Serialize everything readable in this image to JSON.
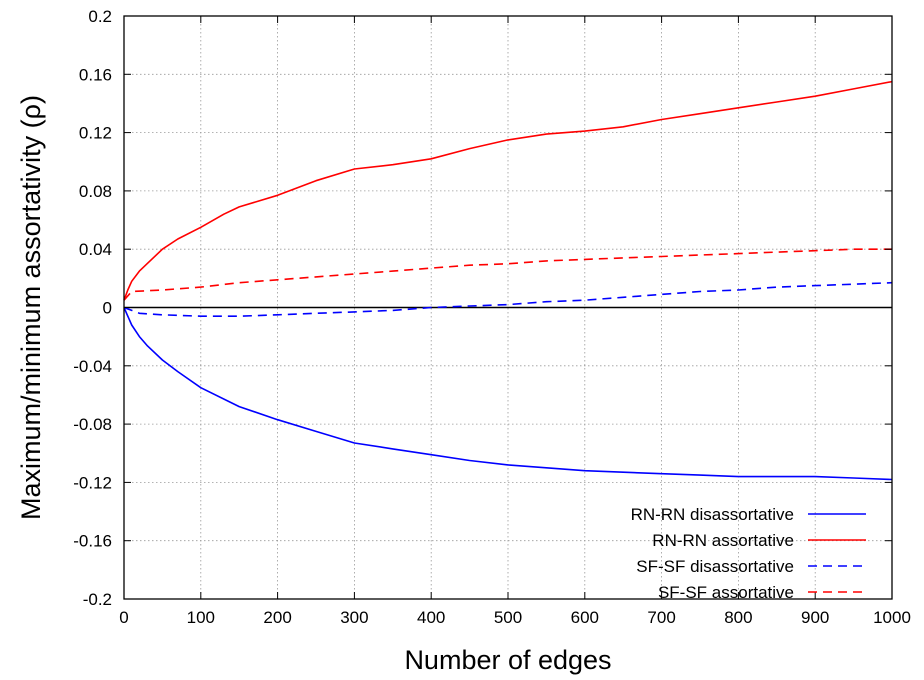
{
  "chart_data": {
    "type": "line",
    "title": "",
    "xlabel": "Number of edges",
    "ylabel": "Maximum/minimum assortativity (ρ)",
    "xlim": [
      0,
      1000
    ],
    "ylim": [
      -0.2,
      0.2
    ],
    "xticks": [
      "0",
      "100",
      "200",
      "300",
      "400",
      "500",
      "600",
      "700",
      "800",
      "900",
      "1000"
    ],
    "yticks": [
      "0.2",
      "0.16",
      "0.12",
      "0.08",
      "0.04",
      "0",
      "-0.04",
      "-0.08",
      "-0.12",
      "-0.16",
      "-0.2"
    ],
    "grid": true,
    "legend_position": "bottom-right",
    "series": [
      {
        "name": "RN-RN disassortative",
        "color": "#0000ff",
        "dash": "solid",
        "x": [
          0,
          10,
          20,
          30,
          50,
          70,
          100,
          150,
          200,
          250,
          300,
          350,
          400,
          450,
          500,
          550,
          600,
          650,
          700,
          750,
          800,
          850,
          900,
          950,
          1000
        ],
        "y": [
          0,
          -0.012,
          -0.02,
          -0.026,
          -0.036,
          -0.044,
          -0.055,
          -0.068,
          -0.077,
          -0.085,
          -0.093,
          -0.097,
          -0.101,
          -0.105,
          -0.108,
          -0.11,
          -0.112,
          -0.113,
          -0.114,
          -0.115,
          -0.116,
          -0.116,
          -0.116,
          -0.117,
          -0.118
        ]
      },
      {
        "name": "RN-RN assortative",
        "color": "#ff0000",
        "dash": "solid",
        "x": [
          0,
          5,
          10,
          20,
          30,
          50,
          70,
          100,
          130,
          150,
          200,
          250,
          300,
          350,
          400,
          450,
          500,
          550,
          600,
          650,
          700,
          750,
          800,
          850,
          900,
          950,
          1000
        ],
        "y": [
          0.005,
          0.012,
          0.018,
          0.025,
          0.03,
          0.04,
          0.047,
          0.055,
          0.064,
          0.069,
          0.077,
          0.087,
          0.095,
          0.098,
          0.102,
          0.109,
          0.115,
          0.119,
          0.121,
          0.124,
          0.129,
          0.133,
          0.137,
          0.141,
          0.145,
          0.15,
          0.155
        ]
      },
      {
        "name": "SF-SF disassortative",
        "color": "#0000ff",
        "dash": "dashed",
        "x": [
          0,
          20,
          50,
          100,
          150,
          200,
          250,
          300,
          350,
          400,
          450,
          500,
          550,
          600,
          650,
          700,
          750,
          800,
          850,
          900,
          950,
          1000
        ],
        "y": [
          0,
          -0.004,
          -0.005,
          -0.006,
          -0.006,
          -0.005,
          -0.004,
          -0.003,
          -0.002,
          0,
          0.001,
          0.002,
          0.004,
          0.005,
          0.007,
          0.009,
          0.011,
          0.012,
          0.014,
          0.015,
          0.016,
          0.017
        ]
      },
      {
        "name": "SF-SF assortative",
        "color": "#ff0000",
        "dash": "dashed",
        "x": [
          0,
          10,
          50,
          100,
          150,
          200,
          250,
          300,
          350,
          400,
          450,
          500,
          550,
          600,
          650,
          700,
          750,
          800,
          850,
          900,
          950,
          1000
        ],
        "y": [
          0.005,
          0.011,
          0.012,
          0.014,
          0.017,
          0.019,
          0.021,
          0.023,
          0.025,
          0.027,
          0.029,
          0.03,
          0.032,
          0.033,
          0.034,
          0.035,
          0.036,
          0.037,
          0.038,
          0.039,
          0.04,
          0.04
        ]
      }
    ]
  }
}
